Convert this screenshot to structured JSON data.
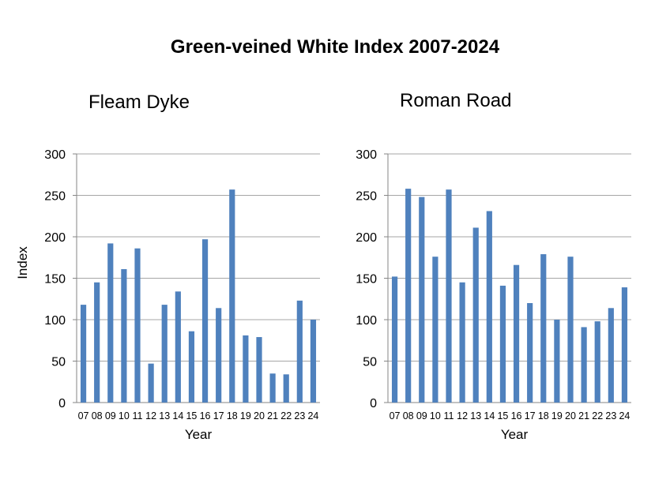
{
  "title": "Green-veined White Index 2007-2024",
  "colors": {
    "bar": "#4f81bd",
    "grid": "#a6a6a6",
    "axis": "#868686"
  },
  "chart_data": [
    {
      "type": "bar",
      "title": "Fleam Dyke",
      "xlabel": "Year",
      "ylabel": "Index",
      "ylim": [
        0,
        300
      ],
      "yticks": [
        0,
        50,
        100,
        150,
        200,
        250,
        300
      ],
      "grid": true,
      "categories": [
        "07",
        "08",
        "09",
        "10",
        "11",
        "12",
        "13",
        "14",
        "15",
        "16",
        "17",
        "18",
        "19",
        "20",
        "21",
        "22",
        "23",
        "24"
      ],
      "values": [
        118,
        145,
        192,
        161,
        186,
        47,
        118,
        134,
        86,
        197,
        114,
        257,
        81,
        79,
        35,
        34,
        123,
        100
      ]
    },
    {
      "type": "bar",
      "title": "Roman Road",
      "xlabel": "Year",
      "ylabel": "",
      "ylim": [
        0,
        300
      ],
      "yticks": [
        0,
        50,
        100,
        150,
        200,
        250,
        300
      ],
      "grid": true,
      "categories": [
        "07",
        "08",
        "09",
        "10",
        "11",
        "12",
        "13",
        "14",
        "15",
        "16",
        "17",
        "18",
        "19",
        "20",
        "21",
        "22",
        "23",
        "24"
      ],
      "values": [
        152,
        258,
        248,
        176,
        257,
        145,
        211,
        231,
        141,
        166,
        120,
        179,
        100,
        176,
        91,
        98,
        114,
        139
      ]
    }
  ]
}
